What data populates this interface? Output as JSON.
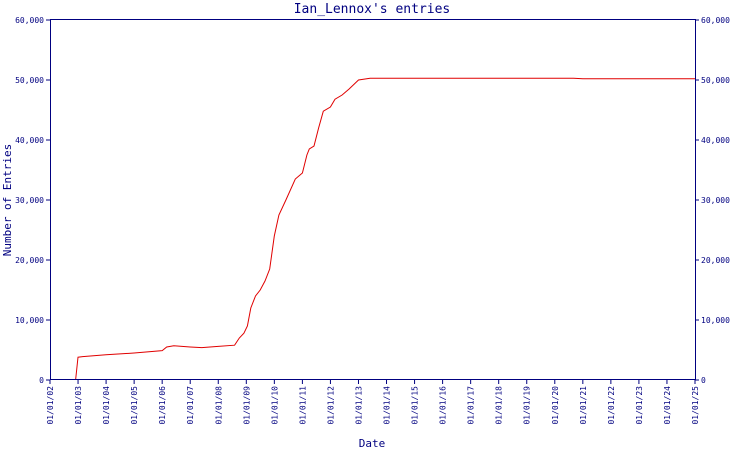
{
  "chart_data": {
    "type": "line",
    "title": "Ian_Lennox's entries",
    "xlabel": "Date",
    "ylabel": "Number of Entries",
    "grid": false,
    "legend": "none",
    "xlim": [
      "2002-01-01",
      "2025-01-01"
    ],
    "ylim": [
      0,
      60000
    ],
    "x_ticks": [
      "01/01/02",
      "01/01/03",
      "01/01/04",
      "01/01/05",
      "01/01/06",
      "01/01/07",
      "01/01/08",
      "01/01/09",
      "01/01/10",
      "01/01/11",
      "01/01/12",
      "01/01/13",
      "01/01/14",
      "01/01/15",
      "01/01/16",
      "01/01/17",
      "01/01/18",
      "01/01/19",
      "01/01/20",
      "01/01/21",
      "01/01/22",
      "01/01/23",
      "01/01/24",
      "01/01/25"
    ],
    "y_ticks": [
      "0",
      "10,000",
      "20,000",
      "30,000",
      "40,000",
      "50,000",
      "60,000"
    ],
    "y_tick_values": [
      0,
      10000,
      20000,
      30000,
      40000,
      50000,
      60000
    ],
    "colors": {
      "axis": "#000080",
      "line": "#e00000"
    },
    "series": [
      {
        "x": [
          "2002-12-01",
          "2003-01-01",
          "2003-03-01",
          "2004-01-01",
          "2005-01-01",
          "2006-01-01",
          "2006-03-01",
          "2006-06-01",
          "2007-01-01",
          "2007-06-01",
          "2008-01-01",
          "2008-08-01",
          "2008-10-01",
          "2008-12-01",
          "2009-01-15",
          "2009-03-01",
          "2009-05-01",
          "2009-07-01",
          "2009-09-01",
          "2009-11-01",
          "2010-01-01",
          "2010-03-01",
          "2010-06-01",
          "2010-10-01",
          "2011-01-01",
          "2011-03-01",
          "2011-04-01",
          "2011-06-01",
          "2011-08-01",
          "2011-10-01",
          "2012-01-01",
          "2012-03-01",
          "2012-06-01",
          "2012-09-01",
          "2013-01-01",
          "2013-06-01",
          "2014-01-01",
          "2015-01-01",
          "2016-01-01",
          "2017-01-01",
          "2018-01-01",
          "2019-01-01",
          "2020-01-01",
          "2020-09-01",
          "2021-01-01",
          "2022-01-01",
          "2023-01-01",
          "2024-01-01",
          "2025-01-01"
        ],
        "y": [
          0,
          3800,
          3900,
          4200,
          4500,
          4900,
          5500,
          5700,
          5500,
          5400,
          5600,
          5800,
          7000,
          7800,
          9000,
          12000,
          14000,
          15000,
          16500,
          18500,
          24000,
          27500,
          30000,
          33500,
          34500,
          37500,
          38500,
          39000,
          42000,
          44800,
          45500,
          46800,
          47500,
          48500,
          50000,
          50300,
          50300,
          50300,
          50300,
          50300,
          50300,
          50300,
          50300,
          50300,
          50200,
          50200,
          50200,
          50200,
          50200
        ]
      }
    ]
  }
}
